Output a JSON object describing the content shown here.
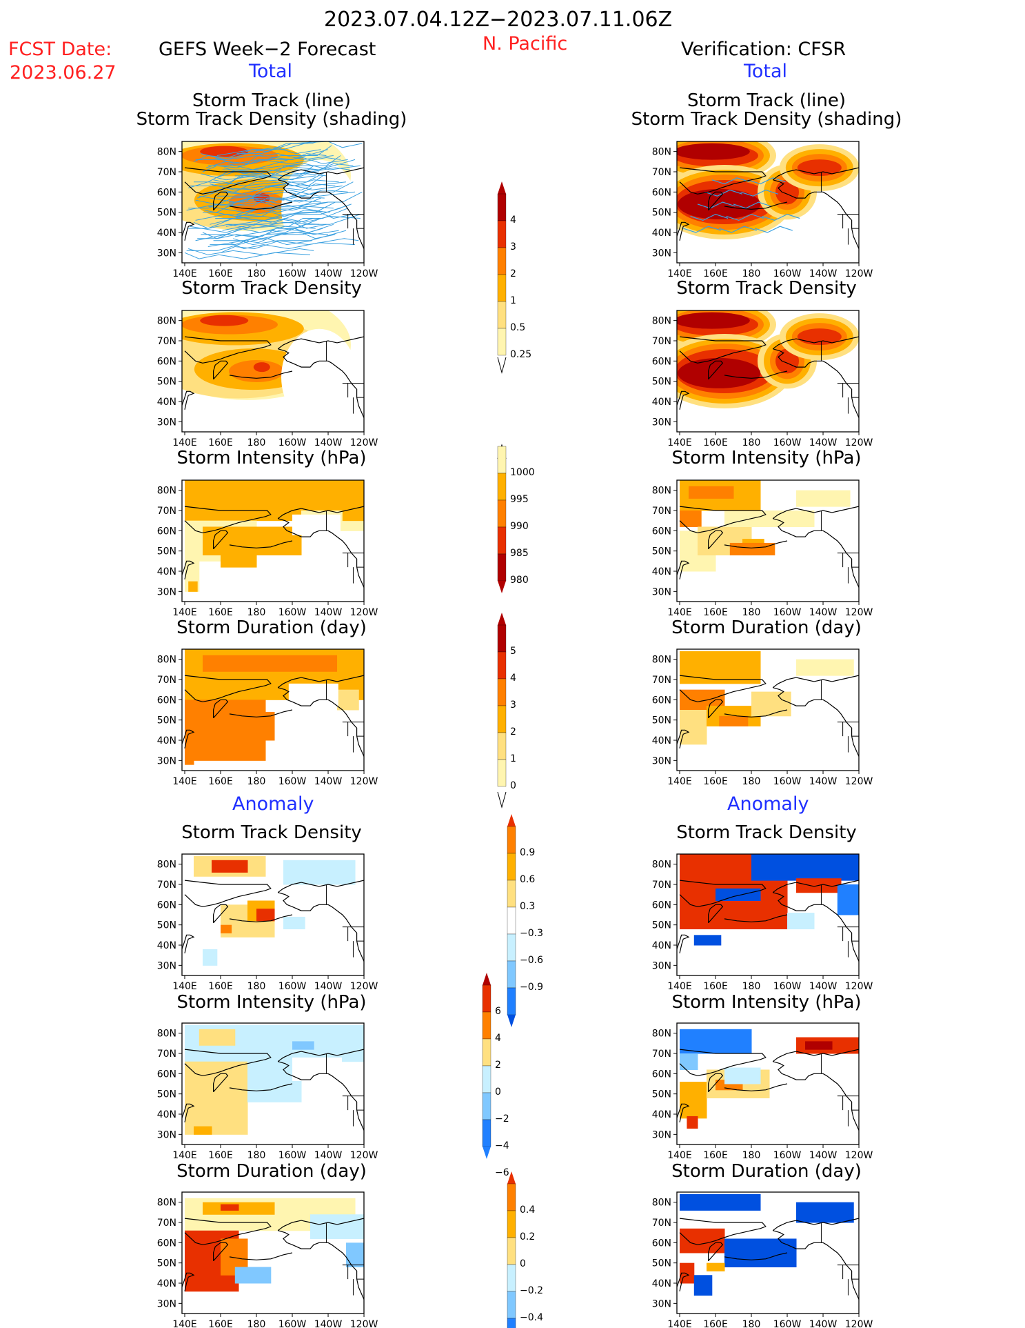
{
  "header": {
    "period": "2023.07.04.12Z−2023.07.11.06Z",
    "region": "N. Pacific",
    "fcst_label": "FCST Date:",
    "fcst_date": "2023.06.27",
    "left_title": "GEFS Week−2 Forecast",
    "right_title": "Verification: CFSR",
    "total_label": "Total",
    "anomaly_label": "Anomaly"
  },
  "panel_titles": {
    "track_line": "Storm Track (line)",
    "track_shading": "Storm Track Density (shading)",
    "density": "Storm Track Density",
    "intensity": "Storm Intensity (hPa)",
    "duration": "Storm Duration (day)"
  },
  "colors": {
    "c1": "#fff5b0",
    "c2": "#ffe080",
    "c3": "#ffb000",
    "c4": "#ff8000",
    "c5": "#e83000",
    "c6": "#b00000",
    "n1": "#c8f0ff",
    "n2": "#80c8ff",
    "n3": "#2080ff",
    "n4": "#0050e0",
    "track": "#3aa0e0"
  },
  "chart_data": [
    {
      "type": "heatmap",
      "name": "Storm Track Density (total)",
      "xlabel": "",
      "ylabel": "",
      "x_ticks": [
        "140E",
        "160E",
        "180",
        "160W",
        "140W",
        "120W"
      ],
      "y_ticks": [
        "30N",
        "40N",
        "50N",
        "60N",
        "70N",
        "80N"
      ],
      "colorbar": {
        "levels": [
          "4",
          "3",
          "2",
          "1",
          "0.5",
          "0.25"
        ]
      }
    },
    {
      "type": "heatmap",
      "name": "Storm Intensity (total)",
      "colorbar": {
        "levels": [
          "1000",
          "995",
          "990",
          "985",
          "980"
        ]
      }
    },
    {
      "type": "heatmap",
      "name": "Storm Duration (total)",
      "colorbar": {
        "levels": [
          "5",
          "4",
          "3",
          "2",
          "1",
          "0"
        ]
      }
    },
    {
      "type": "heatmap",
      "name": "Storm Track Density anomaly",
      "colorbar": {
        "levels": [
          "0.9",
          "0.6",
          "0.3",
          "−0.3",
          "−0.6",
          "−0.9"
        ]
      }
    },
    {
      "type": "heatmap",
      "name": "Storm Intensity anomaly",
      "colorbar": {
        "levels": [
          "6",
          "4",
          "2",
          "0",
          "−2",
          "−4",
          "−6"
        ]
      }
    },
    {
      "type": "heatmap",
      "name": "Storm Duration anomaly",
      "colorbar": {
        "levels": [
          "0.4",
          "0.2",
          "0",
          "−0.2",
          "−0.4"
        ]
      }
    }
  ],
  "x_ticks": [
    "140E",
    "160E",
    "180",
    "160W",
    "140W",
    "120W"
  ],
  "y_ticks": [
    "30N",
    "40N",
    "50N",
    "60N",
    "70N",
    "80N"
  ],
  "colorbars": {
    "density": [
      "4",
      "3",
      "2",
      "1",
      "0.5",
      "0.25"
    ],
    "intensity": [
      "1000",
      "995",
      "990",
      "985",
      "980"
    ],
    "duration": [
      "5",
      "4",
      "3",
      "2",
      "1",
      "0"
    ],
    "anom_density": [
      "0.9",
      "0.6",
      "0.3",
      "−0.3",
      "−0.6",
      "−0.9"
    ],
    "anom_intensity": [
      "6",
      "4",
      "2",
      "0",
      "−2",
      "−4",
      "−6"
    ],
    "anom_duration": [
      "0.4",
      "0.2",
      "0",
      "−0.2",
      "−0.4"
    ]
  }
}
